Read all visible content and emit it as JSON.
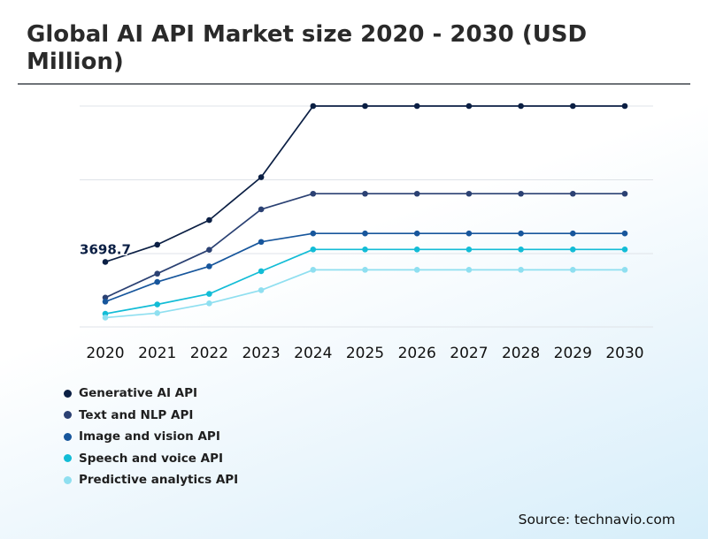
{
  "header": {
    "title": "Global AI API Market size 2020 - 2030 (USD Million)"
  },
  "chart_data": {
    "type": "line",
    "title": "Global AI API Market size 2020 - 2030 (USD Million)",
    "categories": [
      "2020",
      "2021",
      "2022",
      "2023",
      "2024",
      "2025",
      "2026",
      "2027",
      "2028",
      "2029",
      "2030"
    ],
    "series": [
      {
        "name": "Generative AI API",
        "color": "#0b1f44",
        "values": [
          3698.7,
          4680,
          6080,
          8520,
          12570,
          12570,
          12570,
          12570,
          12570,
          12570,
          12570
        ]
      },
      {
        "name": "Text and NLP API",
        "color": "#2b4173",
        "values": [
          1670,
          3030,
          4390,
          6690,
          7580,
          7580,
          7580,
          7580,
          7580,
          7580,
          7580
        ]
      },
      {
        "name": "Image and vision API",
        "color": "#17569c",
        "values": [
          1440,
          2560,
          3450,
          4840,
          5320,
          5320,
          5320,
          5320,
          5320,
          5320,
          5320
        ]
      },
      {
        "name": "Speech and voice API",
        "color": "#12bcd6",
        "values": [
          750,
          1280,
          1880,
          3170,
          4410,
          4410,
          4410,
          4410,
          4410,
          4410,
          4410
        ]
      },
      {
        "name": "Predictive analytics API",
        "color": "#8fdff0",
        "values": [
          530,
          790,
          1340,
          2090,
          3250,
          3250,
          3250,
          3250,
          3250,
          3250,
          3250
        ]
      }
    ],
    "annotations": [
      {
        "series": "Generative AI API",
        "category": "2020",
        "text": "3698.7"
      }
    ],
    "grid": true,
    "legend_position": "bottom-left",
    "xlabel": "",
    "ylabel": ""
  },
  "footer": {
    "source": "Source: technavio.com"
  }
}
